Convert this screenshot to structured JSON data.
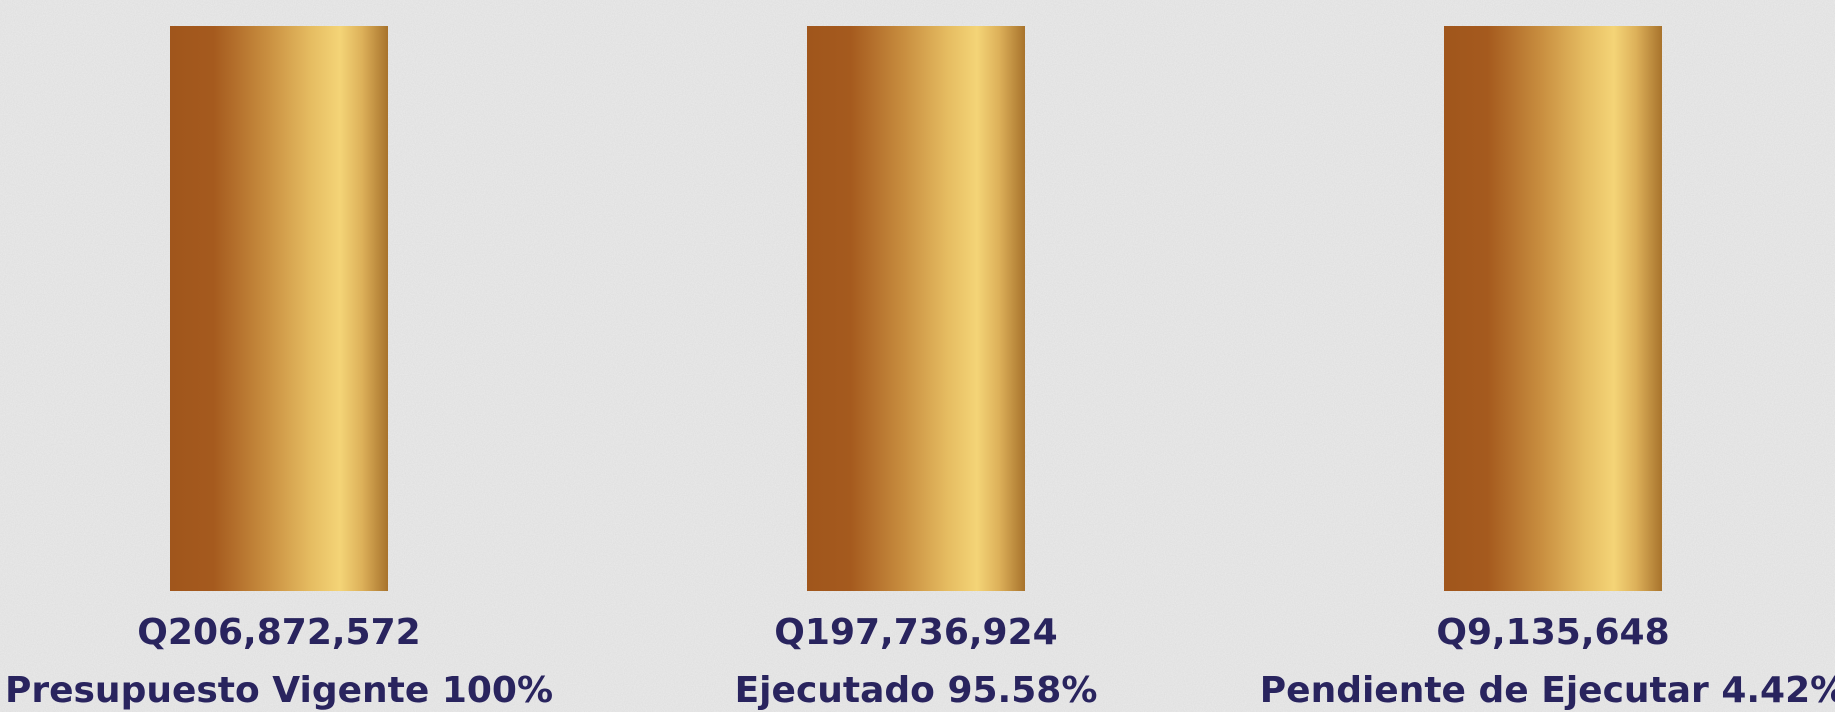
{
  "items": [
    {
      "amount": "Q206,872,572",
      "label": "Presupuesto Vigente 100%"
    },
    {
      "amount": "Q197,736,924",
      "label": "Ejecutado 95.58%"
    },
    {
      "amount": "Q9,135,648",
      "label": "Pendiente de Ejecutar 4.42%"
    }
  ]
}
